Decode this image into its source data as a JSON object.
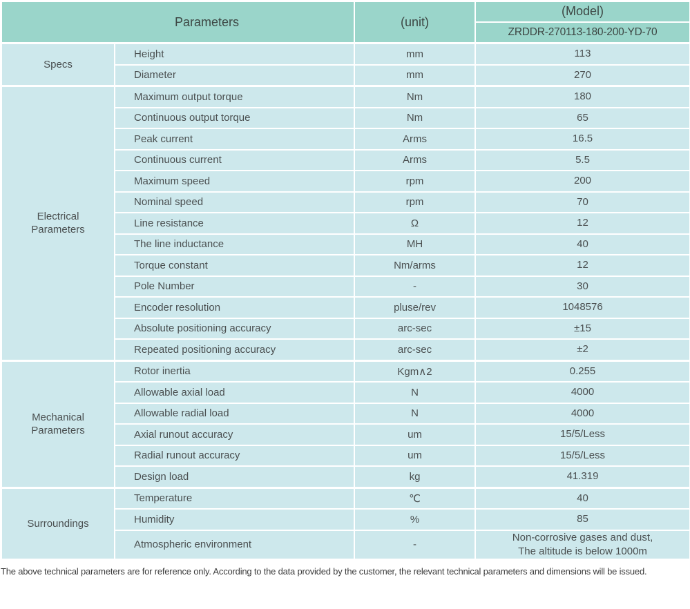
{
  "colors": {
    "header_bg": "#9ad5ca",
    "cell_bg": "#cde8ec",
    "separator": "#ffffff",
    "header_text": "#3d4744",
    "body_text": "#4a4f50"
  },
  "table": {
    "header": {
      "parameters_label": "Parameters",
      "unit_label": "(unit)",
      "model_label": "(Model)",
      "model_value": "ZRDDR-270113-180-200-YD-70"
    },
    "groups": [
      {
        "label": "Specs",
        "rows": [
          {
            "name": "Height",
            "unit": "mm",
            "value": "113"
          },
          {
            "name": "Diameter",
            "unit": "mm",
            "value": "270"
          }
        ]
      },
      {
        "label": "Electrical\nParameters",
        "rows": [
          {
            "name": "Maximum output torque",
            "unit": "Nm",
            "value": "180"
          },
          {
            "name": "Continuous output torque",
            "unit": "Nm",
            "value": "65"
          },
          {
            "name": "Peak current",
            "unit": "Arms",
            "value": "16.5"
          },
          {
            "name": "Continuous current",
            "unit": "Arms",
            "value": "5.5"
          },
          {
            "name": "Maximum speed",
            "unit": "rpm",
            "value": "200"
          },
          {
            "name": "Nominal speed",
            "unit": "rpm",
            "value": "70"
          },
          {
            "name": "Line resistance",
            "unit": "Ω",
            "value": "12"
          },
          {
            "name": "The line inductance",
            "unit": "MH",
            "value": "40"
          },
          {
            "name": "Torque constant",
            "unit": "Nm/arms",
            "value": "12"
          },
          {
            "name": "Pole Number",
            "unit": "-",
            "value": "30"
          },
          {
            "name": "Encoder resolution",
            "unit": "pluse/rev",
            "value": "1048576"
          },
          {
            "name": "Absolute positioning accuracy",
            "unit": "arc-sec",
            "value": "±15"
          },
          {
            "name": "Repeated positioning accuracy",
            "unit": "arc-sec",
            "value": "±2"
          }
        ]
      },
      {
        "label": "Mechanical\nParameters",
        "rows": [
          {
            "name": "Rotor inertia",
            "unit": "Kgm∧2",
            "value": "0.255"
          },
          {
            "name": "Allowable axial load",
            "unit": "N",
            "value": "4000"
          },
          {
            "name": "Allowable radial load",
            "unit": "N",
            "value": "4000"
          },
          {
            "name": "Axial runout accuracy",
            "unit": "um",
            "value": "15/5/Less"
          },
          {
            "name": "Radial runout accuracy",
            "unit": "um",
            "value": "15/5/Less"
          },
          {
            "name": "Design load",
            "unit": "kg",
            "value": "41.319"
          }
        ]
      },
      {
        "label": "Surroundings",
        "rows": [
          {
            "name": "Temperature",
            "unit": "℃",
            "value": "40"
          },
          {
            "name": "Humidity",
            "unit": "%",
            "value": "85"
          },
          {
            "name": "Atmospheric environment",
            "unit": "-",
            "value": "Non-corrosive gases and dust,\nThe altitude is below 1000m",
            "tall": true
          }
        ]
      }
    ]
  },
  "footer": {
    "note": "The above technical parameters are for reference only. According to the data provided by the customer, the relevant technical parameters and dimensions will be issued."
  }
}
